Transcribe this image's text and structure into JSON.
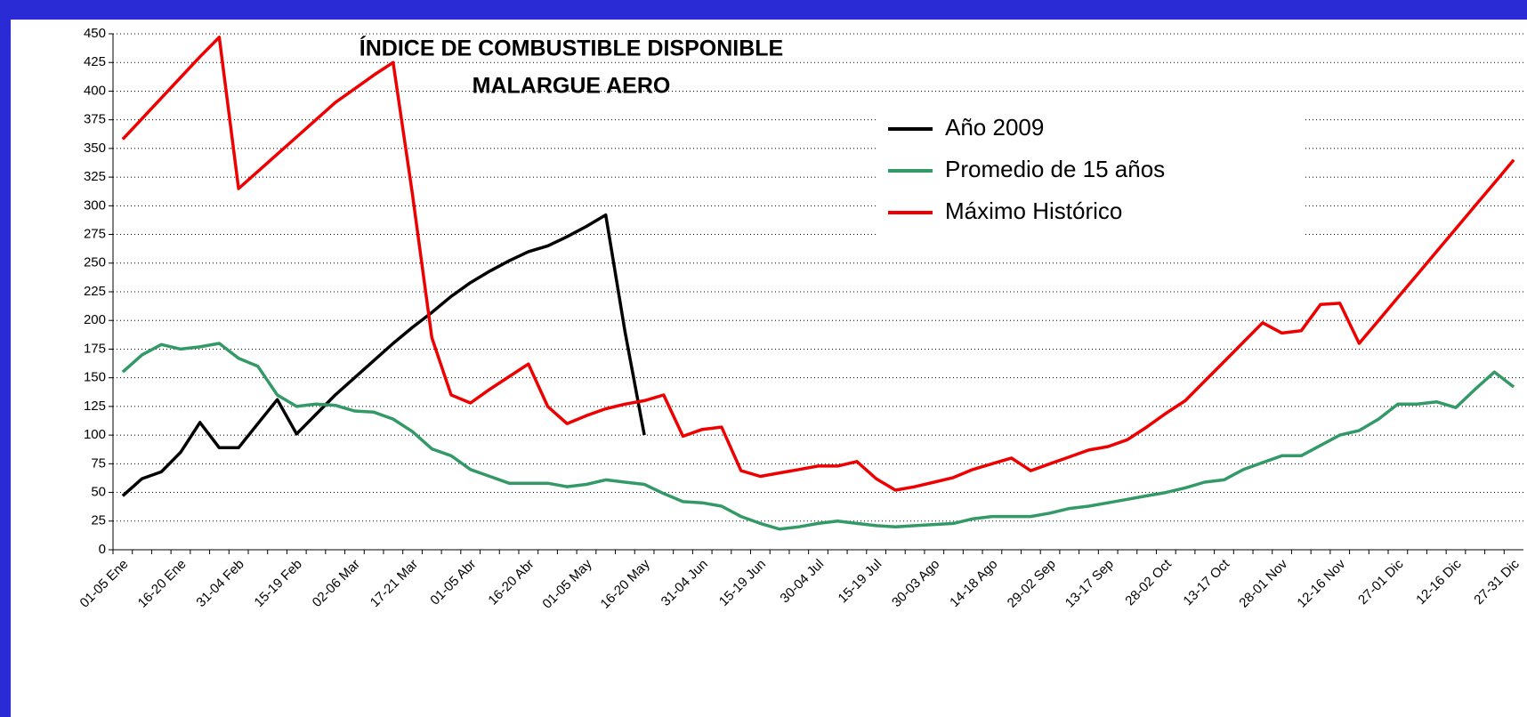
{
  "chart_data": {
    "type": "line",
    "title": "ÍNDICE DE COMBUSTIBLE DISPONIBLE",
    "subtitle": "MALARGUE AERO",
    "categories": [
      "01-05 Ene",
      null,
      null,
      "16-20 Ene",
      null,
      null,
      "31-04 Feb",
      null,
      null,
      "15-19 Feb",
      null,
      null,
      "02-06 Mar",
      null,
      null,
      "17-21 Mar",
      null,
      null,
      "01-05 Abr",
      null,
      null,
      "16-20 Abr",
      null,
      null,
      "01-05 May",
      null,
      null,
      "16-20 May",
      null,
      null,
      "31-04 Jun",
      null,
      null,
      "15-19 Jun",
      null,
      null,
      "30-04 Jul",
      null,
      null,
      "15-19 Jul",
      null,
      null,
      "30-03 Ago",
      null,
      null,
      "14-18 Ago",
      null,
      null,
      "29-02 Sep",
      null,
      null,
      "13-17 Sep",
      null,
      null,
      "28-02 Oct",
      null,
      null,
      "13-17 Oct",
      null,
      null,
      "28-01 Nov",
      null,
      null,
      "12-16 Nov",
      null,
      null,
      "27-01 Dic",
      null,
      null,
      "12-16 Dic",
      null,
      null,
      "27-31 Dic"
    ],
    "series": [
      {
        "name": "Año 2009",
        "color": "#000000",
        "values": [
          47,
          62,
          68,
          85,
          111,
          89,
          89,
          110,
          131,
          101,
          118,
          135,
          150,
          165,
          180,
          194,
          207,
          221,
          233,
          243,
          252,
          260,
          265,
          273,
          282,
          292,
          190,
          100,
          null,
          null,
          null,
          null,
          null,
          null,
          null,
          null,
          null,
          null,
          null,
          null,
          null,
          null,
          null,
          null,
          null,
          null,
          null,
          null,
          null,
          null,
          null,
          null,
          null,
          null,
          null,
          null,
          null,
          null,
          null,
          null,
          null,
          null,
          null,
          null,
          null,
          null,
          null,
          null,
          null,
          null,
          null,
          null,
          null
        ]
      },
      {
        "name": "Promedio de 15 años",
        "color": "#339966",
        "values": [
          155,
          170,
          179,
          175,
          177,
          180,
          167,
          160,
          135,
          125,
          127,
          126,
          121,
          120,
          114,
          103,
          88,
          82,
          70,
          64,
          58,
          58,
          58,
          55,
          57,
          61,
          59,
          57,
          49,
          42,
          41,
          38,
          29,
          23,
          18,
          20,
          23,
          25,
          23,
          21,
          20,
          21,
          22,
          23,
          27,
          29,
          29,
          29,
          32,
          36,
          38,
          41,
          44,
          47,
          50,
          54,
          59,
          61,
          70,
          76,
          82,
          82,
          91,
          100,
          104,
          114,
          127,
          127,
          129,
          124,
          140,
          155,
          142
        ]
      },
      {
        "name": "Máximo Histórico",
        "color": "#ee0000",
        "values": [
          358,
          376,
          394,
          412,
          430,
          447,
          315,
          330,
          345,
          360,
          375,
          390,
          402,
          414,
          425,
          310,
          185,
          135,
          128,
          140,
          151,
          162,
          125,
          110,
          117,
          123,
          127,
          130,
          135,
          99,
          105,
          107,
          69,
          64,
          67,
          70,
          73,
          73,
          77,
          62,
          52,
          55,
          59,
          63,
          70,
          75,
          80,
          69,
          75,
          81,
          87,
          90,
          96,
          107,
          119,
          130,
          147,
          164,
          181,
          198,
          189,
          191,
          214,
          215,
          180,
          200,
          220,
          240,
          260,
          280,
          300,
          320,
          340
        ]
      }
    ],
    "ylim": [
      0,
      450
    ],
    "yticks": [
      0,
      25,
      50,
      75,
      100,
      125,
      150,
      175,
      200,
      225,
      250,
      275,
      300,
      325,
      350,
      375,
      400,
      425,
      450
    ],
    "grid": true
  }
}
